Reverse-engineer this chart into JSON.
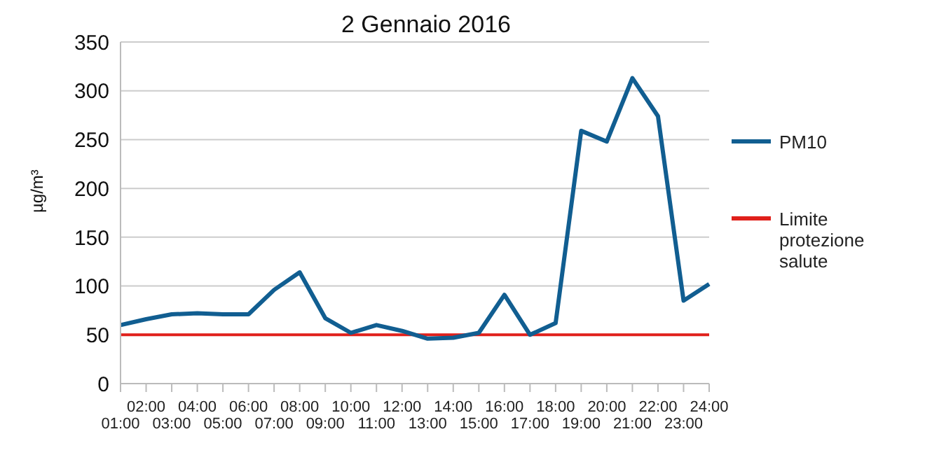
{
  "chart_data": {
    "type": "line",
    "title": "2 Gennaio 2016",
    "ylabel": "µg/m³",
    "categories": [
      "01:00",
      "02:00",
      "03:00",
      "04:00",
      "05:00",
      "06:00",
      "07:00",
      "08:00",
      "09:00",
      "10:00",
      "11:00",
      "12:00",
      "13:00",
      "14:00",
      "15:00",
      "16:00",
      "17:00",
      "18:00",
      "19:00",
      "20:00",
      "21:00",
      "22:00",
      "23:00",
      "24:00"
    ],
    "series": [
      {
        "name": "PM10",
        "color": "#115e91",
        "values": [
          60,
          66,
          71,
          72,
          71,
          71,
          96,
          114,
          67,
          52,
          60,
          54,
          46,
          47,
          52,
          91,
          50,
          62,
          259,
          248,
          313,
          274,
          85,
          102
        ]
      }
    ],
    "ref_lines": [
      {
        "axis": "y",
        "value": 50,
        "label": "Limite protezione salute",
        "color": "#e0201b"
      }
    ],
    "ylim": [
      0,
      350
    ],
    "yticks": [
      0,
      50,
      100,
      150,
      200,
      250,
      300,
      350
    ],
    "grid": "y",
    "legend": "right",
    "marker": "none",
    "line_style": "solid"
  }
}
